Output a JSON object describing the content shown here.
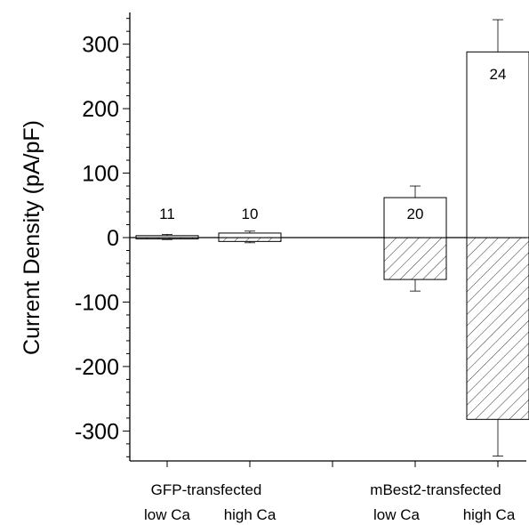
{
  "chart_data": {
    "type": "bar",
    "ylabel": "Current Density (pA/pF)",
    "ylim": [
      -350,
      350
    ],
    "yticks": [
      "300",
      "200",
      "100",
      "0",
      "-100",
      "-200",
      "-300"
    ],
    "ytick_values": [
      300,
      200,
      100,
      0,
      -100,
      -200,
      -300
    ],
    "group_labels": [
      "GFP-transfected",
      "mBest2-transfected"
    ],
    "categories": [
      "low Ca",
      "high Ca",
      "low Ca",
      "high Ca"
    ],
    "category_positions": [
      1,
      2,
      4,
      5
    ],
    "n_labels": [
      "11",
      "10",
      "20",
      "24"
    ],
    "series": [
      {
        "fill": "open",
        "values": [
          3,
          7,
          62,
          288
        ],
        "errors": [
          2,
          3,
          18,
          50
        ]
      },
      {
        "fill": "hatched",
        "values": [
          -2,
          -6,
          -65,
          -282
        ],
        "errors": [
          1,
          2,
          18,
          57
        ]
      }
    ],
    "zero_line": true,
    "legend": "none",
    "grid": false
  }
}
